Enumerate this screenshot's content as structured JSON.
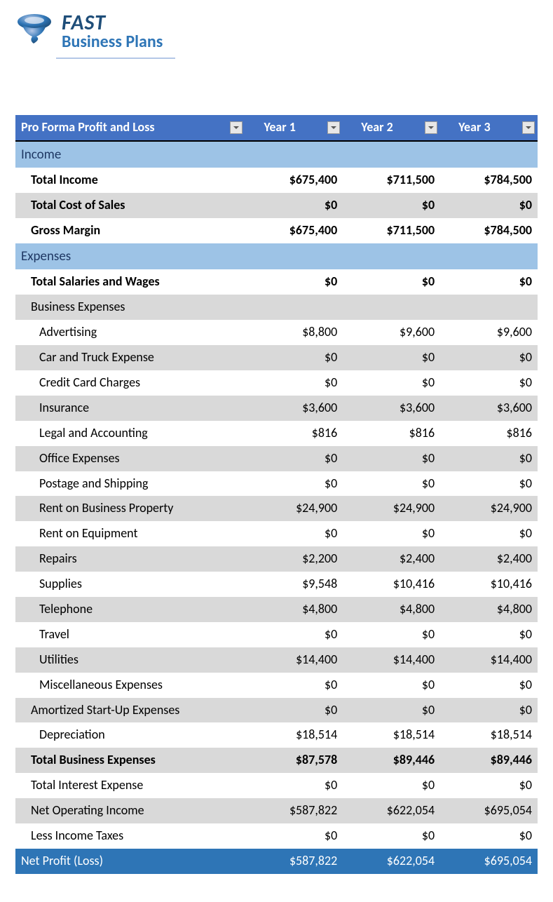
{
  "brand": {
    "line1": "FAST",
    "line2": "Business Plans",
    "line1_color": "#1f4e79",
    "line2_color": "#2e75b6",
    "underline_color": "#b4c7e7",
    "tornado_colors": [
      "#b4c7e7",
      "#2e75b6",
      "#1f4e79"
    ]
  },
  "table": {
    "title": "Pro Forma Profit and Loss",
    "year_labels": [
      "Year 1",
      "Year 2",
      "Year 3"
    ],
    "header_bg": "#4472c4",
    "header_text_color": "#ffffff",
    "header_bottom_border": "#000000",
    "section_bg": "#9dc3e6",
    "section_text_color": "#1f3864",
    "shade_bg": "#d9d9d9",
    "netrow_bg": "#2e75b6",
    "netrow_text_color": "#ffffff",
    "dropdown_arrow_color": "#595959",
    "font_size_pt": 13,
    "rows": [
      {
        "type": "section",
        "label": "Income"
      },
      {
        "type": "data",
        "label": "Total Income",
        "indent": 1,
        "bold": true,
        "shaded": false,
        "values": [
          "$675,400",
          "$711,500",
          "$784,500"
        ]
      },
      {
        "type": "data",
        "label": "Total Cost of Sales",
        "indent": 1,
        "bold": true,
        "shaded": true,
        "values": [
          "$0",
          "$0",
          "$0"
        ]
      },
      {
        "type": "data",
        "label": "Gross Margin",
        "indent": 1,
        "bold": true,
        "shaded": false,
        "values": [
          "$675,400",
          "$711,500",
          "$784,500"
        ]
      },
      {
        "type": "section",
        "label": "Expenses"
      },
      {
        "type": "data",
        "label": "Total Salaries and Wages",
        "indent": 1,
        "bold": true,
        "shaded": false,
        "values": [
          "$0",
          "$0",
          "$0"
        ]
      },
      {
        "type": "data",
        "label": "Business Expenses",
        "indent": 1,
        "bold": false,
        "shaded": true,
        "values": [
          "",
          "",
          ""
        ]
      },
      {
        "type": "data",
        "label": "Advertising",
        "indent": 2,
        "bold": false,
        "shaded": false,
        "values": [
          "$8,800",
          "$9,600",
          "$9,600"
        ]
      },
      {
        "type": "data",
        "label": "Car and Truck Expense",
        "indent": 2,
        "bold": false,
        "shaded": true,
        "values": [
          "$0",
          "$0",
          "$0"
        ]
      },
      {
        "type": "data",
        "label": "Credit Card Charges",
        "indent": 2,
        "bold": false,
        "shaded": false,
        "values": [
          "$0",
          "$0",
          "$0"
        ]
      },
      {
        "type": "data",
        "label": "Insurance",
        "indent": 2,
        "bold": false,
        "shaded": true,
        "values": [
          "$3,600",
          "$3,600",
          "$3,600"
        ]
      },
      {
        "type": "data",
        "label": "Legal and Accounting",
        "indent": 2,
        "bold": false,
        "shaded": false,
        "values": [
          "$816",
          "$816",
          "$816"
        ]
      },
      {
        "type": "data",
        "label": "Office Expenses",
        "indent": 2,
        "bold": false,
        "shaded": true,
        "values": [
          "$0",
          "$0",
          "$0"
        ]
      },
      {
        "type": "data",
        "label": "Postage and Shipping",
        "indent": 2,
        "bold": false,
        "shaded": false,
        "values": [
          "$0",
          "$0",
          "$0"
        ]
      },
      {
        "type": "data",
        "label": "Rent on Business Property",
        "indent": 2,
        "bold": false,
        "shaded": true,
        "values": [
          "$24,900",
          "$24,900",
          "$24,900"
        ]
      },
      {
        "type": "data",
        "label": "Rent on Equipment",
        "indent": 2,
        "bold": false,
        "shaded": false,
        "values": [
          "$0",
          "$0",
          "$0"
        ]
      },
      {
        "type": "data",
        "label": "Repairs",
        "indent": 2,
        "bold": false,
        "shaded": true,
        "values": [
          "$2,200",
          "$2,400",
          "$2,400"
        ]
      },
      {
        "type": "data",
        "label": "Supplies",
        "indent": 2,
        "bold": false,
        "shaded": false,
        "values": [
          "$9,548",
          "$10,416",
          "$10,416"
        ]
      },
      {
        "type": "data",
        "label": "Telephone",
        "indent": 2,
        "bold": false,
        "shaded": true,
        "values": [
          "$4,800",
          "$4,800",
          "$4,800"
        ]
      },
      {
        "type": "data",
        "label": "Travel",
        "indent": 2,
        "bold": false,
        "shaded": false,
        "values": [
          "$0",
          "$0",
          "$0"
        ]
      },
      {
        "type": "data",
        "label": "Utilities",
        "indent": 2,
        "bold": false,
        "shaded": true,
        "values": [
          "$14,400",
          "$14,400",
          "$14,400"
        ]
      },
      {
        "type": "data",
        "label": "Miscellaneous Expenses",
        "indent": 2,
        "bold": false,
        "shaded": false,
        "values": [
          "$0",
          "$0",
          "$0"
        ]
      },
      {
        "type": "data",
        "label": "Amortized Start-Up Expenses",
        "indent": 1,
        "bold": false,
        "shaded": true,
        "values": [
          "$0",
          "$0",
          "$0"
        ]
      },
      {
        "type": "data",
        "label": "Depreciation",
        "indent": 2,
        "bold": false,
        "shaded": false,
        "values": [
          "$18,514",
          "$18,514",
          "$18,514"
        ]
      },
      {
        "type": "data",
        "label": "Total Business Expenses",
        "indent": 1,
        "bold": true,
        "shaded": true,
        "values": [
          "$87,578",
          "$89,446",
          "$89,446"
        ]
      },
      {
        "type": "data",
        "label": "Total Interest Expense",
        "indent": 1,
        "bold": false,
        "shaded": false,
        "values": [
          "$0",
          "$0",
          "$0"
        ]
      },
      {
        "type": "data",
        "label": "Net Operating Income",
        "indent": 1,
        "bold": false,
        "shaded": true,
        "values": [
          "$587,822",
          "$622,054",
          "$695,054"
        ]
      },
      {
        "type": "data",
        "label": "Less Income Taxes",
        "indent": 1,
        "bold": false,
        "shaded": false,
        "values": [
          "$0",
          "$0",
          "$0"
        ]
      },
      {
        "type": "net",
        "label": "Net Profit (Loss)",
        "values": [
          "$587,822",
          "$622,054",
          "$695,054"
        ]
      }
    ]
  }
}
